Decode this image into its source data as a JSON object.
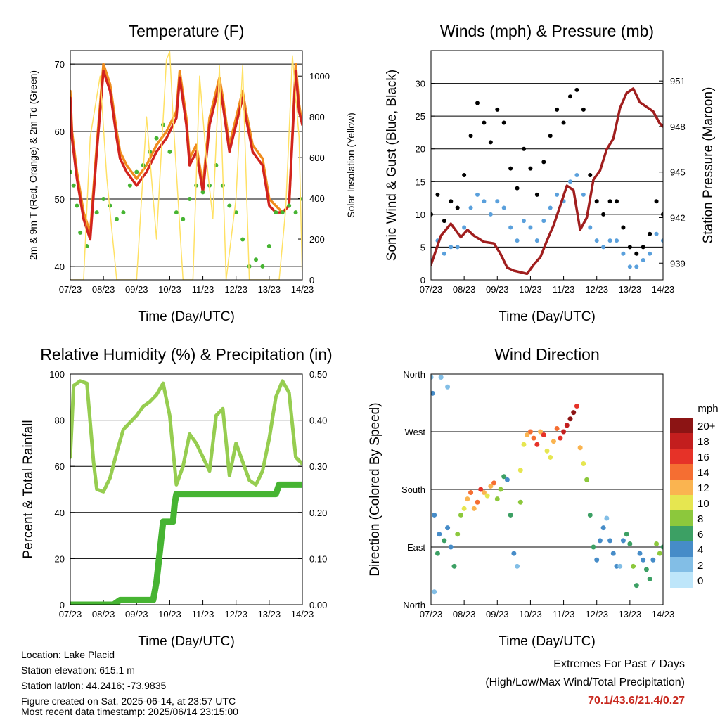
{
  "footer": {
    "location": "Location: Lake Placid",
    "elevation": "Station elevation: 615.1 m",
    "latlon": "Station lat/lon: 44.2416; -73.9835",
    "created": "Figure created on Sat, 2025-06-14, at 23:57 UTC",
    "recent": "Most recent data timestamp: 2025/06/14 23:15:00"
  },
  "extremes": {
    "title": "Extremes For Past 7 Days",
    "subtitle": "(High/Low/Max Wind/Total Precipitation)",
    "values": "70.1/43.6/21.4/0.27",
    "color": "#c8281e"
  },
  "chart_data": [
    {
      "id": "temperature",
      "type": "line",
      "title": "Temperature (F)",
      "xlabel": "Time (Day/UTC)",
      "ylabel": "2m & 9m T (Red, Orange) & 2m Td (Green)",
      "ylabel_right": "Solar Insolation (Yellow)",
      "x_ticks": [
        "07/23",
        "08/23",
        "09/23",
        "10/23",
        "11/23",
        "12/23",
        "13/23",
        "14/23"
      ],
      "xlim": [
        0,
        7
      ],
      "ylim": [
        38,
        72
      ],
      "y_ticks": [
        40,
        50,
        60,
        70
      ],
      "ylim_right": [
        0,
        1125
      ],
      "y_ticks_right": [
        0,
        200,
        400,
        600,
        800,
        1000
      ],
      "grid": true,
      "series": [
        {
          "color": "#f08c1e",
          "width": 3.5,
          "x": [
            0,
            0.05,
            0.2,
            0.4,
            0.6,
            0.8,
            1.0,
            1.2,
            1.4,
            1.5,
            1.7,
            2.0,
            2.3,
            2.6,
            2.9,
            3.2,
            3.3,
            3.5,
            3.6,
            3.8,
            4.0,
            4.2,
            4.5,
            4.6,
            4.8,
            5.0,
            5.2,
            5.3,
            5.5,
            5.8,
            6.0,
            6.2,
            6.4,
            6.6,
            6.8,
            6.9,
            7.0
          ],
          "y": [
            66,
            60,
            54,
            48,
            45,
            58,
            70,
            67,
            60,
            57,
            55,
            53,
            55,
            58,
            60,
            63,
            69,
            62,
            56,
            58,
            52,
            62,
            68,
            65,
            58,
            62,
            66,
            63,
            58,
            56,
            50,
            49,
            48,
            49,
            70,
            64,
            61
          ]
        },
        {
          "color": "#d2231e",
          "width": 3.5,
          "x": [
            0,
            0.05,
            0.2,
            0.4,
            0.6,
            0.8,
            1.0,
            1.2,
            1.4,
            1.5,
            1.7,
            2.0,
            2.3,
            2.6,
            2.9,
            3.2,
            3.3,
            3.5,
            3.6,
            3.8,
            4.0,
            4.2,
            4.5,
            4.6,
            4.8,
            5.0,
            5.2,
            5.3,
            5.5,
            5.8,
            6.0,
            6.2,
            6.4,
            6.6,
            6.8,
            6.9,
            7.0
          ],
          "y": [
            65,
            59,
            53,
            47,
            44,
            57,
            69,
            66,
            59,
            56,
            54,
            52,
            54,
            57,
            59,
            62,
            68,
            61,
            55,
            57,
            51,
            61,
            67,
            64,
            57,
            61,
            65,
            62,
            57,
            55,
            49,
            48,
            48,
            49,
            69,
            63,
            61
          ]
        },
        {
          "color": "#46b432",
          "width": 3,
          "style": "dots",
          "x": [
            0,
            0.1,
            0.2,
            0.3,
            0.5,
            0.8,
            1.0,
            1.2,
            1.4,
            1.6,
            1.8,
            2.0,
            2.2,
            2.4,
            2.6,
            2.8,
            3.0,
            3.2,
            3.4,
            3.6,
            3.8,
            4.0,
            4.2,
            4.4,
            4.6,
            4.8,
            5.0,
            5.2,
            5.4,
            5.6,
            5.8,
            6.0,
            6.2,
            6.4,
            6.6,
            6.8,
            7.0
          ],
          "y": [
            54,
            52,
            49,
            45,
            43,
            48,
            50,
            49,
            47,
            48,
            52,
            54,
            55,
            57,
            59,
            61,
            57,
            48,
            47,
            50,
            52,
            51,
            52,
            55,
            52,
            49,
            48,
            44,
            40,
            41,
            40,
            43,
            48,
            48,
            49,
            48,
            50
          ]
        },
        {
          "color": "#ffe164",
          "width": 1.5,
          "axis": "right",
          "x": [
            0,
            0.4,
            0.6,
            0.9,
            1.1,
            1.4,
            1.7,
            2.0,
            2.3,
            2.6,
            2.9,
            3.0,
            3.1,
            3.4,
            3.7,
            3.9,
            4.1,
            4.3,
            4.5,
            4.7,
            5.0,
            5.2,
            5.4,
            5.7,
            6.0,
            6.3,
            6.5,
            6.7,
            6.9,
            7.0
          ],
          "y": [
            0,
            0,
            700,
            1000,
            500,
            0,
            0,
            0,
            800,
            200,
            1080,
            1120,
            800,
            0,
            0,
            1000,
            600,
            300,
            1050,
            0,
            400,
            1050,
            0,
            0,
            0,
            0,
            350,
            1100,
            700,
            0
          ]
        }
      ]
    },
    {
      "id": "winds",
      "type": "scatter",
      "title": "Winds (mph) & Pressure (mb)",
      "xlabel": "Time (Day/UTC)",
      "ylabel": "Sonic Wind & Gust (Blue, Black)",
      "ylabel_right": "Station Pressure (Maroon)",
      "x_ticks": [
        "07/23",
        "08/23",
        "09/23",
        "10/23",
        "11/23",
        "12/23",
        "13/23",
        "14/23"
      ],
      "xlim": [
        0,
        7
      ],
      "ylim": [
        0,
        35
      ],
      "y_ticks": [
        0,
        5,
        10,
        15,
        20,
        25,
        30
      ],
      "ylim_right": [
        937.9,
        953
      ],
      "y_ticks_right": [
        939,
        942,
        945,
        948,
        951
      ],
      "grid": true,
      "series": [
        {
          "color": "#000000",
          "style": "dots",
          "x": [
            0,
            0.2,
            0.4,
            0.6,
            0.8,
            1.0,
            1.2,
            1.4,
            1.6,
            1.8,
            2.0,
            2.2,
            2.4,
            2.6,
            2.8,
            3.0,
            3.2,
            3.4,
            3.6,
            3.8,
            4.0,
            4.2,
            4.4,
            4.6,
            4.8,
            5.0,
            5.2,
            5.4,
            5.6,
            5.8,
            6.0,
            6.2,
            6.4,
            6.6,
            6.8,
            7.0
          ],
          "y": [
            10,
            13,
            9,
            12,
            11,
            16,
            22,
            27,
            24,
            21,
            26,
            24,
            17,
            14,
            20,
            17,
            13,
            18,
            22,
            26,
            24,
            28,
            29,
            26,
            16,
            12,
            10,
            12,
            12,
            8,
            5,
            4,
            5,
            7,
            12,
            10
          ]
        },
        {
          "color": "#5aa0dc",
          "style": "dots",
          "x": [
            0,
            0.2,
            0.4,
            0.6,
            0.8,
            1.0,
            1.2,
            1.4,
            1.6,
            1.8,
            2.0,
            2.2,
            2.4,
            2.6,
            2.8,
            3.0,
            3.2,
            3.4,
            3.6,
            3.8,
            4.0,
            4.2,
            4.4,
            4.6,
            4.8,
            5.0,
            5.2,
            5.4,
            5.6,
            5.8,
            6.0,
            6.2,
            6.4,
            6.6,
            6.8,
            7.0
          ],
          "y": [
            3,
            6,
            4,
            5,
            5,
            8,
            11,
            13,
            12,
            10,
            12,
            11,
            8,
            6,
            9,
            8,
            6,
            9,
            11,
            13,
            12,
            15,
            16,
            13,
            8,
            6,
            5,
            6,
            6,
            4,
            2,
            2,
            3,
            4,
            7,
            6
          ]
        },
        {
          "color": "#a01e1e",
          "width": 3.5,
          "axis": "right",
          "x": [
            0,
            0.3,
            0.6,
            0.9,
            1.1,
            1.3,
            1.6,
            1.9,
            2.1,
            2.3,
            2.5,
            2.7,
            2.9,
            3.1,
            3.3,
            3.5,
            3.7,
            3.9,
            4.1,
            4.3,
            4.5,
            4.7,
            4.9,
            5.1,
            5.3,
            5.5,
            5.7,
            5.9,
            6.1,
            6.3,
            6.5,
            6.7,
            6.9,
            7.0
          ],
          "y": [
            938.9,
            940.8,
            941.6,
            940.7,
            941.2,
            940.8,
            940.4,
            940.3,
            939.6,
            938.7,
            938.5,
            938.4,
            938.3,
            938.9,
            939.4,
            940.5,
            941.5,
            942.8,
            944.1,
            943.8,
            941.2,
            942.0,
            944.5,
            945.1,
            946.5,
            947.2,
            949.2,
            950.2,
            950.5,
            949.6,
            949.3,
            949.0,
            948.2,
            948.0
          ]
        }
      ]
    },
    {
      "id": "humidity",
      "type": "line",
      "title": "Relative Humidity (%) & Precipitation (in)",
      "xlabel": "Time (Day/UTC)",
      "ylabel": "Percent & Total Rainfall",
      "x_ticks": [
        "07/23",
        "08/23",
        "09/23",
        "10/23",
        "11/23",
        "12/23",
        "13/23",
        "14/23"
      ],
      "xlim": [
        0,
        7
      ],
      "ylim": [
        0,
        100
      ],
      "y_ticks": [
        0,
        20,
        40,
        60,
        80,
        100
      ],
      "ylim_right": [
        0,
        0.5
      ],
      "y_ticks_right": [
        "0.00",
        "0.10",
        "0.20",
        "0.30",
        "0.40",
        "0.50"
      ],
      "grid": true,
      "series": [
        {
          "color": "#96cd50",
          "width": 5,
          "x": [
            0,
            0.1,
            0.3,
            0.5,
            0.7,
            0.8,
            1.0,
            1.2,
            1.4,
            1.6,
            1.8,
            2.0,
            2.2,
            2.4,
            2.6,
            2.8,
            3.0,
            3.2,
            3.4,
            3.6,
            3.8,
            4.0,
            4.2,
            4.4,
            4.6,
            4.8,
            5.0,
            5.2,
            5.4,
            5.6,
            5.8,
            6.0,
            6.2,
            6.4,
            6.6,
            6.8,
            7.0
          ],
          "y": [
            64,
            95,
            97,
            96,
            62,
            50,
            49,
            55,
            66,
            76,
            79,
            82,
            86,
            88,
            91,
            96,
            82,
            52,
            60,
            74,
            70,
            64,
            58,
            82,
            85,
            56,
            70,
            62,
            54,
            52,
            58,
            72,
            90,
            97,
            92,
            64,
            61
          ]
        },
        {
          "color": "#46b432",
          "width": 9,
          "x": [
            0,
            0.5,
            1.0,
            1.3,
            1.5,
            2.0,
            2.5,
            2.6,
            2.8,
            3.0,
            3.1,
            3.15,
            3.2,
            4.0,
            5.0,
            6.0,
            6.2,
            6.3,
            7.0
          ],
          "y": [
            0.0,
            0.0,
            0.0,
            0.0,
            0.01,
            0.01,
            0.01,
            0.05,
            0.18,
            0.18,
            0.18,
            0.22,
            0.24,
            0.24,
            0.24,
            0.24,
            0.24,
            0.26,
            0.26
          ],
          "axis": "right"
        }
      ]
    },
    {
      "id": "wind_direction",
      "type": "scatter",
      "title": "Wind Direction",
      "xlabel": "Time (Day/UTC)",
      "ylabel": "Direction (Colored By Speed)",
      "x_ticks": [
        "07/23",
        "08/23",
        "09/23",
        "10/23",
        "11/23",
        "12/23",
        "13/23",
        "14/23"
      ],
      "xlim": [
        0,
        7
      ],
      "ylim": [
        0,
        360
      ],
      "y_tick_values": [
        0,
        90,
        180,
        270,
        360
      ],
      "y_tick_labels": [
        "North",
        "East",
        "South",
        "West",
        "North"
      ],
      "grid": true,
      "colorbar": {
        "title": "mph",
        "labels": [
          "0",
          "2",
          "4",
          "6",
          "8",
          "10",
          "12",
          "14",
          "16",
          "18",
          "20+"
        ],
        "colors": [
          "#bee6fa",
          "#82bee6",
          "#468cc8",
          "#3ca064",
          "#8cc83c",
          "#e6e650",
          "#fab450",
          "#f56e32",
          "#e63228",
          "#c31e1e",
          "#8c1414"
        ]
      },
      "points": {
        "x": [
          0,
          0.05,
          0.1,
          0.1,
          0.2,
          0.25,
          0.3,
          0.4,
          0.5,
          0.5,
          0.6,
          0.7,
          0.8,
          0.9,
          1.0,
          1.1,
          1.2,
          1.3,
          1.4,
          1.5,
          1.6,
          1.7,
          1.8,
          1.9,
          2.0,
          2.1,
          2.2,
          2.3,
          2.4,
          2.5,
          2.6,
          2.7,
          2.7,
          2.8,
          2.9,
          3.0,
          3.1,
          3.2,
          3.3,
          3.4,
          3.5,
          3.6,
          3.7,
          3.8,
          3.9,
          4.0,
          4.1,
          4.2,
          4.3,
          4.4,
          4.5,
          4.6,
          4.7,
          4.8,
          4.9,
          5.0,
          5.1,
          5.2,
          5.3,
          5.4,
          5.5,
          5.6,
          5.7,
          5.8,
          5.9,
          6.0,
          6.1,
          6.2,
          6.3,
          6.4,
          6.5,
          6.6,
          6.7,
          6.8,
          6.9,
          7.0
        ],
        "y": [
          355,
          330,
          20,
          140,
          80,
          110,
          355,
          100,
          120,
          340,
          90,
          60,
          110,
          140,
          150,
          165,
          175,
          150,
          160,
          180,
          175,
          170,
          185,
          190,
          165,
          180,
          200,
          195,
          140,
          80,
          60,
          160,
          210,
          250,
          265,
          270,
          260,
          250,
          270,
          265,
          240,
          230,
          255,
          275,
          260,
          270,
          280,
          290,
          300,
          310,
          245,
          220,
          195,
          140,
          90,
          70,
          100,
          120,
          135,
          100,
          80,
          60,
          60,
          100,
          110,
          95,
          60,
          30,
          80,
          70,
          55,
          40,
          70,
          95,
          80,
          90
        ],
        "speed": [
          2,
          4,
          1,
          3,
          6,
          4,
          1,
          5,
          4,
          2,
          3,
          6,
          8,
          7,
          10,
          12,
          14,
          11,
          13,
          15,
          12,
          9,
          11,
          13,
          8,
          7,
          6,
          4,
          5,
          3,
          2,
          7,
          9,
          10,
          11,
          13,
          14,
          15,
          12,
          16,
          10,
          9,
          11,
          13,
          16,
          17,
          18,
          20,
          19,
          15,
          12,
          10,
          7,
          6,
          5,
          4,
          3,
          4,
          2,
          3,
          4,
          3,
          2,
          4,
          5,
          6,
          7,
          5,
          4,
          3,
          5,
          6,
          4,
          7,
          8,
          6
        ]
      }
    }
  ]
}
